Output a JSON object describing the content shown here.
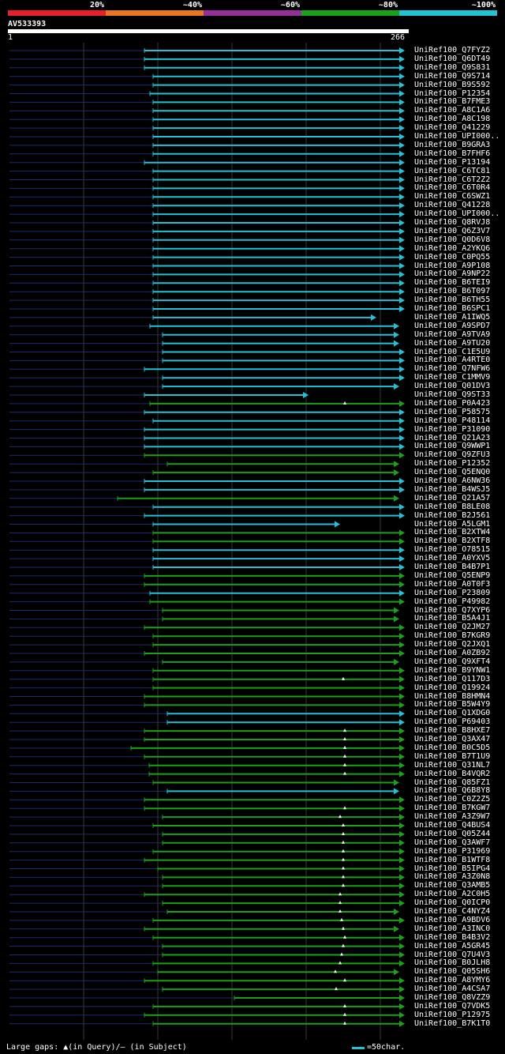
{
  "legend": [
    {
      "label": "20%",
      "color": "#e8202a"
    },
    {
      "label": "~40%",
      "color": "#e87722"
    },
    {
      "label": "~60%",
      "color": "#922f9a"
    },
    {
      "label": "~80%",
      "color": "#1aa019"
    },
    {
      "label": "~100%",
      "color": "#21c2d6"
    }
  ],
  "query": {
    "id": "AV533393",
    "start": "1",
    "end": "266"
  },
  "hits": [
    {
      "name": "UniRef100_Q7FYZ2",
      "start": 183,
      "end": 513,
      "color": "cyan",
      "gap": null
    },
    {
      "name": "UniRef100_Q6DT49",
      "start": 183,
      "end": 513,
      "color": "cyan",
      "gap": null
    },
    {
      "name": "UniRef100_Q9S831",
      "start": 183,
      "end": 513,
      "color": "cyan",
      "gap": null
    },
    {
      "name": "UniRef100_Q9S714",
      "start": 194,
      "end": 513,
      "color": "cyan",
      "gap": null
    },
    {
      "name": "UniRef100_B9S592",
      "start": 194,
      "end": 513,
      "color": "cyan",
      "gap": null
    },
    {
      "name": "UniRef100_P12354",
      "start": 190,
      "end": 513,
      "color": "cyan",
      "gap": null
    },
    {
      "name": "UniRef100_B7FME3",
      "start": 194,
      "end": 513,
      "color": "cyan",
      "gap": null
    },
    {
      "name": "UniRef100_A8C1A6",
      "start": 194,
      "end": 513,
      "color": "cyan",
      "gap": null
    },
    {
      "name": "UniRef100_A8C198",
      "start": 194,
      "end": 513,
      "color": "cyan",
      "gap": null
    },
    {
      "name": "UniRef100_Q41229",
      "start": 194,
      "end": 513,
      "color": "cyan",
      "gap": null
    },
    {
      "name": "UniRef100_UPI000..",
      "start": 194,
      "end": 513,
      "color": "cyan",
      "gap": null
    },
    {
      "name": "UniRef100_B9GRA3",
      "start": 194,
      "end": 513,
      "color": "cyan",
      "gap": null
    },
    {
      "name": "UniRef100_B7FHF6",
      "start": 194,
      "end": 513,
      "color": "cyan",
      "gap": null
    },
    {
      "name": "UniRef100_P13194",
      "start": 183,
      "end": 513,
      "color": "cyan",
      "gap": null
    },
    {
      "name": "UniRef100_C6TC81",
      "start": 194,
      "end": 513,
      "color": "cyan",
      "gap": null
    },
    {
      "name": "UniRef100_C6T2Z2",
      "start": 194,
      "end": 513,
      "color": "cyan",
      "gap": null
    },
    {
      "name": "UniRef100_C6T0R4",
      "start": 194,
      "end": 513,
      "color": "cyan",
      "gap": null
    },
    {
      "name": "UniRef100_C6SWZ1",
      "start": 194,
      "end": 513,
      "color": "cyan",
      "gap": null
    },
    {
      "name": "UniRef100_Q41228",
      "start": 194,
      "end": 513,
      "color": "cyan",
      "gap": null
    },
    {
      "name": "UniRef100_UPI000..",
      "start": 194,
      "end": 513,
      "color": "cyan",
      "gap": null
    },
    {
      "name": "UniRef100_Q8RVJ8",
      "start": 194,
      "end": 513,
      "color": "cyan",
      "gap": null
    },
    {
      "name": "UniRef100_Q6Z3V7",
      "start": 194,
      "end": 513,
      "color": "cyan",
      "gap": null
    },
    {
      "name": "UniRef100_Q0D6V8",
      "start": 194,
      "end": 513,
      "color": "cyan",
      "gap": null
    },
    {
      "name": "UniRef100_A2YKQ6",
      "start": 194,
      "end": 513,
      "color": "cyan",
      "gap": null
    },
    {
      "name": "UniRef100_C0PQ55",
      "start": 194,
      "end": 513,
      "color": "cyan",
      "gap": null
    },
    {
      "name": "UniRef100_A9P108",
      "start": 194,
      "end": 513,
      "color": "cyan",
      "gap": null
    },
    {
      "name": "UniRef100_A9NP22",
      "start": 194,
      "end": 513,
      "color": "cyan",
      "gap": null
    },
    {
      "name": "UniRef100_B6TEI9",
      "start": 194,
      "end": 513,
      "color": "cyan",
      "gap": null
    },
    {
      "name": "UniRef100_B6T097",
      "start": 194,
      "end": 513,
      "color": "cyan",
      "gap": null
    },
    {
      "name": "UniRef100_B6TH55",
      "start": 194,
      "end": 513,
      "color": "cyan",
      "gap": null
    },
    {
      "name": "UniRef100_B6SPC1",
      "start": 194,
      "end": 513,
      "color": "cyan",
      "gap": null
    },
    {
      "name": "UniRef100_A1IWQ5",
      "start": 194,
      "end": 477,
      "color": "cyan",
      "gap": null
    },
    {
      "name": "UniRef100_A9SPD7",
      "start": 190,
      "end": 506,
      "color": "cyan",
      "gap": null
    },
    {
      "name": "UniRef100_A9TVA9",
      "start": 206,
      "end": 506,
      "color": "cyan",
      "gap": null
    },
    {
      "name": "UniRef100_A9TU20",
      "start": 206,
      "end": 506,
      "color": "cyan",
      "gap": null
    },
    {
      "name": "UniRef100_C1E5U9",
      "start": 206,
      "end": 513,
      "color": "cyan",
      "gap": null
    },
    {
      "name": "UniRef100_A4RTE0",
      "start": 206,
      "end": 513,
      "color": "cyan",
      "gap": null
    },
    {
      "name": "UniRef100_Q7NFW6",
      "start": 183,
      "end": 513,
      "color": "cyan",
      "gap": null
    },
    {
      "name": "UniRef100_C1MMV9",
      "start": 206,
      "end": 513,
      "color": "cyan",
      "gap": null
    },
    {
      "name": "UniRef100_Q01DV3",
      "start": 206,
      "end": 506,
      "color": "cyan",
      "gap": null
    },
    {
      "name": "UniRef100_Q9ST33",
      "start": 183,
      "end": 391,
      "color": "cyan",
      "gap": null
    },
    {
      "name": "UniRef100_P0A423",
      "start": 190,
      "end": 513,
      "color": "green",
      "gap": 437
    },
    {
      "name": "UniRef100_P58575",
      "start": 183,
      "end": 513,
      "color": "cyan",
      "gap": null
    },
    {
      "name": "UniRef100_P48114",
      "start": 194,
      "end": 513,
      "color": "cyan",
      "gap": null
    },
    {
      "name": "UniRef100_P31090",
      "start": 183,
      "end": 513,
      "color": "cyan",
      "gap": null
    },
    {
      "name": "UniRef100_Q21A23",
      "start": 183,
      "end": 513,
      "color": "cyan",
      "gap": null
    },
    {
      "name": "UniRef100_Q9WWP1",
      "start": 183,
      "end": 513,
      "color": "cyan",
      "gap": null
    },
    {
      "name": "UniRef100_Q9ZFU3",
      "start": 183,
      "end": 513,
      "color": "green",
      "gap": null
    },
    {
      "name": "UniRef100_P12352",
      "start": 212,
      "end": 506,
      "color": "green",
      "gap": null
    },
    {
      "name": "UniRef100_Q5ENQ0",
      "start": 194,
      "end": 506,
      "color": "green",
      "gap": null
    },
    {
      "name": "UniRef100_A6NW36",
      "start": 183,
      "end": 513,
      "color": "cyan",
      "gap": null
    },
    {
      "name": "UniRef100_B4WSJ5",
      "start": 183,
      "end": 513,
      "color": "cyan",
      "gap": null
    },
    {
      "name": "UniRef100_Q21A57",
      "start": 149,
      "end": 506,
      "color": "green",
      "gap": null
    },
    {
      "name": "UniRef100_B8LE08",
      "start": 194,
      "end": 513,
      "color": "cyan",
      "gap": null
    },
    {
      "name": "UniRef100_B2J561",
      "start": 183,
      "end": 513,
      "color": "cyan",
      "gap": null
    },
    {
      "name": "UniRef100_A5LGM1",
      "start": 194,
      "end": 431,
      "color": "cyan",
      "gap": null
    },
    {
      "name": "UniRef100_B2XTW4",
      "start": 194,
      "end": 513,
      "color": "green",
      "gap": null
    },
    {
      "name": "UniRef100_B2XTF8",
      "start": 194,
      "end": 513,
      "color": "green",
      "gap": null
    },
    {
      "name": "UniRef100_O78515",
      "start": 194,
      "end": 513,
      "color": "cyan",
      "gap": null
    },
    {
      "name": "UniRef100_A0YXV5",
      "start": 194,
      "end": 513,
      "color": "cyan",
      "gap": null
    },
    {
      "name": "UniRef100_B4B7P1",
      "start": 194,
      "end": 513,
      "color": "cyan",
      "gap": null
    },
    {
      "name": "UniRef100_Q5ENP9",
      "start": 183,
      "end": 513,
      "color": "green",
      "gap": null
    },
    {
      "name": "UniRef100_A0T0F3",
      "start": 183,
      "end": 513,
      "color": "green",
      "gap": null
    },
    {
      "name": "UniRef100_P23809",
      "start": 190,
      "end": 513,
      "color": "cyan",
      "gap": null
    },
    {
      "name": "UniRef100_P49982",
      "start": 190,
      "end": 513,
      "color": "green",
      "gap": null
    },
    {
      "name": "UniRef100_Q7XYP6",
      "start": 206,
      "end": 506,
      "color": "green",
      "gap": null
    },
    {
      "name": "UniRef100_B5A4J1",
      "start": 206,
      "end": 506,
      "color": "green",
      "gap": null
    },
    {
      "name": "UniRef100_Q2JM27",
      "start": 183,
      "end": 513,
      "color": "green",
      "gap": null
    },
    {
      "name": "UniRef100_B7KGR9",
      "start": 194,
      "end": 513,
      "color": "green",
      "gap": null
    },
    {
      "name": "UniRef100_Q2JXQ1",
      "start": 194,
      "end": 513,
      "color": "green",
      "gap": null
    },
    {
      "name": "UniRef100_A0ZB92",
      "start": 183,
      "end": 513,
      "color": "green",
      "gap": null
    },
    {
      "name": "UniRef100_Q9XFT4",
      "start": 206,
      "end": 506,
      "color": "green",
      "gap": null
    },
    {
      "name": "UniRef100_B9YNW1",
      "start": 194,
      "end": 513,
      "color": "green",
      "gap": null
    },
    {
      "name": "UniRef100_Q117D3",
      "start": 194,
      "end": 513,
      "color": "green",
      "gap": 435
    },
    {
      "name": "UniRef100_Q19924",
      "start": 194,
      "end": 513,
      "color": "green",
      "gap": null
    },
    {
      "name": "UniRef100_B8HMN4",
      "start": 183,
      "end": 513,
      "color": "green",
      "gap": null
    },
    {
      "name": "UniRef100_B5W4Y9",
      "start": 183,
      "end": 513,
      "color": "green",
      "gap": null
    },
    {
      "name": "UniRef100_Q1XDG0",
      "start": 212,
      "end": 513,
      "color": "cyan",
      "gap": null
    },
    {
      "name": "UniRef100_P69403",
      "start": 212,
      "end": 513,
      "color": "cyan",
      "gap": null
    },
    {
      "name": "UniRef100_B8HXE7",
      "start": 183,
      "end": 513,
      "color": "green",
      "gap": 437
    },
    {
      "name": "UniRef100_Q3AX47",
      "start": 183,
      "end": 513,
      "color": "green",
      "gap": 437
    },
    {
      "name": "UniRef100_B0C5D5",
      "start": 166,
      "end": 513,
      "color": "green",
      "gap": 437
    },
    {
      "name": "UniRef100_B7T1U9",
      "start": 183,
      "end": 513,
      "color": "green",
      "gap": 437
    },
    {
      "name": "UniRef100_Q31NL7",
      "start": 189,
      "end": 513,
      "color": "green",
      "gap": 437
    },
    {
      "name": "UniRef100_B4VQR2",
      "start": 189,
      "end": 513,
      "color": "green",
      "gap": 437
    },
    {
      "name": "UniRef100_Q85FZ1",
      "start": 194,
      "end": 506,
      "color": "green",
      "gap": null
    },
    {
      "name": "UniRef100_Q6B8Y8",
      "start": 212,
      "end": 506,
      "color": "cyan",
      "gap": null
    },
    {
      "name": "UniRef100_C0Z2Z5",
      "start": 183,
      "end": 513,
      "color": "green",
      "gap": null
    },
    {
      "name": "UniRef100_B7KGW7",
      "start": 183,
      "end": 513,
      "color": "green",
      "gap": 437
    },
    {
      "name": "UniRef100_A3Z9W7",
      "start": 206,
      "end": 513,
      "color": "green",
      "gap": 431
    },
    {
      "name": "UniRef100_Q4BUS4",
      "start": 194,
      "end": 513,
      "color": "green",
      "gap": 435
    },
    {
      "name": "UniRef100_Q05Z44",
      "start": 206,
      "end": 513,
      "color": "green",
      "gap": 435
    },
    {
      "name": "UniRef100_Q3AWF7",
      "start": 206,
      "end": 513,
      "color": "green",
      "gap": 435
    },
    {
      "name": "UniRef100_P31969",
      "start": 194,
      "end": 513,
      "color": "green",
      "gap": 435
    },
    {
      "name": "UniRef100_B1WTF8",
      "start": 183,
      "end": 513,
      "color": "green",
      "gap": 435
    },
    {
      "name": "UniRef100_B5IPG4",
      "start": 200,
      "end": 513,
      "color": "green",
      "gap": 435
    },
    {
      "name": "UniRef100_A3Z0N8",
      "start": 206,
      "end": 513,
      "color": "green",
      "gap": 435
    },
    {
      "name": "UniRef100_Q3AMB5",
      "start": 206,
      "end": 513,
      "color": "green",
      "gap": 435
    },
    {
      "name": "UniRef100_A2C0H5",
      "start": 183,
      "end": 513,
      "color": "green",
      "gap": 431
    },
    {
      "name": "UniRef100_Q0ICP0",
      "start": 206,
      "end": 513,
      "color": "green",
      "gap": 431
    },
    {
      "name": "UniRef100_C4NYZ4",
      "start": 212,
      "end": 506,
      "color": "green",
      "gap": 431
    },
    {
      "name": "UniRef100_A9BDV6",
      "start": 194,
      "end": 513,
      "color": "green",
      "gap": 433
    },
    {
      "name": "UniRef100_A3INC0",
      "start": 183,
      "end": 506,
      "color": "green",
      "gap": 435
    },
    {
      "name": "UniRef100_B4B3V2",
      "start": 194,
      "end": 513,
      "color": "green",
      "gap": 437
    },
    {
      "name": "UniRef100_A5GR45",
      "start": 206,
      "end": 513,
      "color": "green",
      "gap": 435
    },
    {
      "name": "UniRef100_Q7U4V3",
      "start": 206,
      "end": 513,
      "color": "green",
      "gap": 433
    },
    {
      "name": "UniRef100_B0JLH8",
      "start": 194,
      "end": 513,
      "color": "green",
      "gap": 431
    },
    {
      "name": "UniRef100_Q05SH6",
      "start": 200,
      "end": 506,
      "color": "green",
      "gap": 425
    },
    {
      "name": "UniRef100_A8YMY6",
      "start": 183,
      "end": 513,
      "color": "green",
      "gap": 437
    },
    {
      "name": "UniRef100_A4CSA7",
      "start": 206,
      "end": 513,
      "color": "green",
      "gap": 426
    },
    {
      "name": "UniRef100_Q8VZZ9",
      "start": 297,
      "end": 513,
      "color": "green",
      "gap": null
    },
    {
      "name": "UniRef100_Q7VDK5",
      "start": 194,
      "end": 513,
      "color": "green",
      "gap": 437
    },
    {
      "name": "UniRef100_P12975",
      "start": 183,
      "end": 513,
      "color": "green",
      "gap": 437
    },
    {
      "name": "UniRef100_B7K1T0",
      "start": 194,
      "end": 513,
      "color": "green",
      "gap": 437
    }
  ],
  "colors": {
    "cyan": "#21c2d6",
    "green": "#1aa019",
    "leader": "#1e2a6e",
    "grid": "#3a3a3a"
  },
  "footer": {
    "gaps": "Large gaps: ▲(in Query)/– (in Subject)",
    "scale_text": "=50char."
  }
}
